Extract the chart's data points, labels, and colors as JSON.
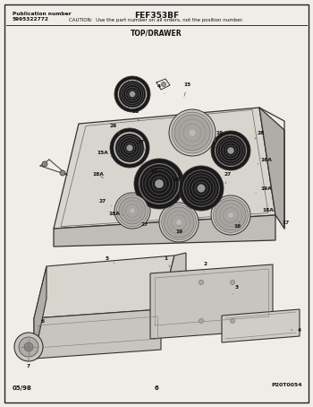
{
  "title": "FEF353BF",
  "caution": "CAUTION:  Use the part number on all orders, not the position number.",
  "pub_number_label": "Publication number",
  "pub_number": "5995322772",
  "section_label": "TOP/DRAWER",
  "page_code": "P20T0054",
  "date": "05/98",
  "page": "6",
  "bg_color": "#f0ede8",
  "border_color": "#222222",
  "text_color": "#111111",
  "line_color": "#333333",
  "cooktop_top_color": "#d8d5ce",
  "cooktop_side_color": "#b0ada8",
  "cooktop_front_color": "#c0bdb8",
  "drawer_top_color": "#d8d5ce",
  "drawer_side_color": "#b0ada8",
  "drawer_front_color": "#c8c5c0",
  "burner_dark": "#1a1818",
  "burner_mid": "#3a3838",
  "burner_light": "#888",
  "burner_ring": "#aaa"
}
